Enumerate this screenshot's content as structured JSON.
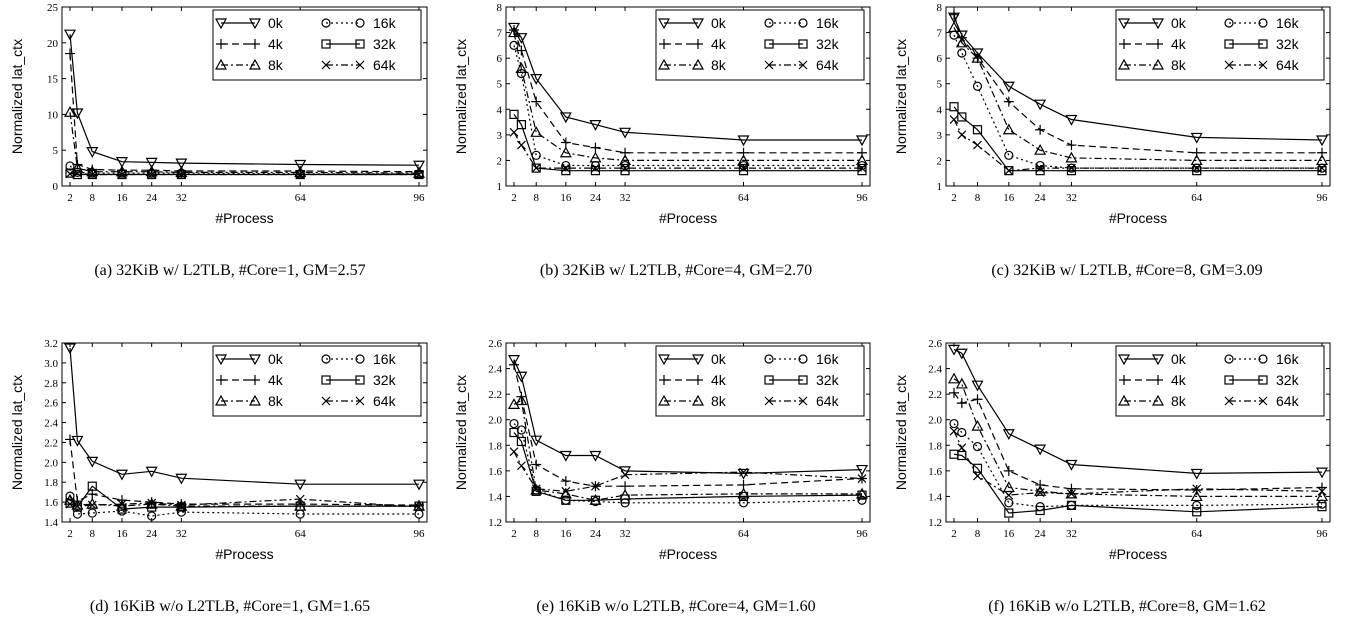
{
  "markers": {
    "0k": "tri-down",
    "4k": "plus",
    "8k": "tri-up",
    "16k": "circle",
    "32k": "square",
    "64k": "x"
  },
  "dashes": {
    "0k": "solid",
    "4k": "dash",
    "8k": "dashdot",
    "16k": "dot",
    "32k": "solid",
    "64k": "dashdot"
  },
  "chart_data": [
    {
      "type": "line",
      "caption": "(a) 32KiB w/ L2TLB, #Core=1, GM=2.57",
      "xlabel": "#Process",
      "ylabel": "Normalized lat_ctx",
      "x": [
        2,
        4,
        8,
        16,
        24,
        32,
        64,
        96
      ],
      "xticks": [
        2,
        8,
        16,
        24,
        32,
        64,
        96
      ],
      "ylim": [
        0,
        25
      ],
      "yticks": [
        0,
        5,
        10,
        15,
        20,
        25
      ],
      "legend_position": "top-right",
      "series": [
        {
          "name": "0k",
          "values": [
            21.2,
            10.2,
            4.8,
            3.4,
            3.3,
            3.2,
            3.0,
            2.9
          ]
        },
        {
          "name": "4k",
          "values": [
            18.5,
            3.0,
            2.3,
            2.2,
            2.2,
            2.1,
            2.1,
            2.0
          ]
        },
        {
          "name": "8k",
          "values": [
            10.3,
            2.5,
            2.0,
            2.0,
            2.0,
            1.9,
            1.9,
            1.8
          ]
        },
        {
          "name": "16k",
          "values": [
            2.8,
            1.9,
            1.8,
            1.8,
            1.8,
            1.8,
            1.7,
            1.7
          ]
        },
        {
          "name": "32k",
          "values": [
            1.8,
            1.6,
            1.6,
            1.6,
            1.6,
            1.6,
            1.6,
            1.6
          ]
        },
        {
          "name": "64k",
          "values": [
            1.7,
            1.8,
            1.6,
            1.6,
            1.6,
            1.6,
            1.6,
            1.6
          ]
        }
      ]
    },
    {
      "type": "line",
      "caption": "(b) 32KiB w/ L2TLB, #Core=4, GM=2.70",
      "xlabel": "#Process",
      "ylabel": "Normalized lat_ctx",
      "x": [
        2,
        4,
        8,
        16,
        24,
        32,
        64,
        96
      ],
      "xticks": [
        2,
        8,
        16,
        24,
        32,
        64,
        96
      ],
      "ylim": [
        1,
        8
      ],
      "yticks": [
        1,
        2,
        3,
        4,
        5,
        6,
        7,
        8
      ],
      "legend_position": "top-right",
      "series": [
        {
          "name": "0k",
          "values": [
            7.2,
            6.8,
            5.2,
            3.7,
            3.4,
            3.1,
            2.8,
            2.8
          ]
        },
        {
          "name": "4k",
          "values": [
            7.1,
            6.3,
            4.3,
            2.7,
            2.5,
            2.3,
            2.3,
            2.3
          ]
        },
        {
          "name": "8k",
          "values": [
            7.0,
            5.6,
            3.1,
            2.3,
            2.1,
            2.0,
            2.0,
            2.0
          ]
        },
        {
          "name": "16k",
          "values": [
            6.5,
            5.4,
            2.2,
            1.8,
            1.8,
            1.8,
            1.8,
            1.8
          ]
        },
        {
          "name": "32k",
          "values": [
            3.8,
            3.4,
            1.7,
            1.6,
            1.6,
            1.6,
            1.6,
            1.6
          ]
        },
        {
          "name": "64k",
          "values": [
            3.1,
            2.6,
            1.7,
            1.7,
            1.7,
            1.7,
            1.7,
            1.7
          ]
        }
      ]
    },
    {
      "type": "line",
      "caption": "(c) 32KiB w/ L2TLB, #Core=8, GM=3.09",
      "xlabel": "#Process",
      "ylabel": "Normalized lat_ctx",
      "x": [
        2,
        4,
        8,
        16,
        24,
        32,
        64,
        96
      ],
      "xticks": [
        2,
        8,
        16,
        24,
        32,
        64,
        96
      ],
      "ylim": [
        1,
        8
      ],
      "yticks": [
        1,
        2,
        3,
        4,
        5,
        6,
        7,
        8
      ],
      "legend_position": "top-right",
      "series": [
        {
          "name": "0k",
          "values": [
            7.6,
            6.9,
            6.2,
            4.9,
            4.2,
            3.6,
            2.9,
            2.8
          ]
        },
        {
          "name": "4k",
          "values": [
            7.7,
            6.8,
            6.0,
            4.3,
            3.2,
            2.6,
            2.3,
            2.3
          ]
        },
        {
          "name": "8k",
          "values": [
            7.2,
            6.6,
            6.0,
            3.2,
            2.4,
            2.1,
            2.0,
            2.0
          ]
        },
        {
          "name": "16k",
          "values": [
            6.9,
            6.2,
            4.9,
            2.2,
            1.8,
            1.7,
            1.7,
            1.7
          ]
        },
        {
          "name": "32k",
          "values": [
            4.1,
            3.7,
            3.2,
            1.6,
            1.6,
            1.6,
            1.6,
            1.6
          ]
        },
        {
          "name": "64k",
          "values": [
            3.6,
            3.0,
            2.6,
            1.6,
            1.7,
            1.7,
            1.7,
            1.7
          ]
        }
      ]
    },
    {
      "type": "line",
      "caption": "(d) 16KiB w/o L2TLB, #Core=1, GM=1.65",
      "xlabel": "#Process",
      "ylabel": "Normalized lat_ctx",
      "x": [
        2,
        4,
        8,
        16,
        24,
        32,
        64,
        96
      ],
      "xticks": [
        2,
        8,
        16,
        24,
        32,
        64,
        96
      ],
      "ylim": [
        1.4,
        3.2
      ],
      "yticks": [
        1.4,
        1.6,
        1.8,
        2.0,
        2.2,
        2.4,
        2.6,
        2.8,
        3.0,
        3.2
      ],
      "legend_position": "top-right",
      "series": [
        {
          "name": "0k",
          "values": [
            3.15,
            2.22,
            2.01,
            1.88,
            1.91,
            1.84,
            1.78,
            1.78
          ]
        },
        {
          "name": "4k",
          "values": [
            2.23,
            1.61,
            1.68,
            1.62,
            1.6,
            1.58,
            1.58,
            1.57
          ]
        },
        {
          "name": "8k",
          "values": [
            1.62,
            1.57,
            1.58,
            1.56,
            1.58,
            1.56,
            1.56,
            1.56
          ]
        },
        {
          "name": "16k",
          "values": [
            1.66,
            1.48,
            1.49,
            1.51,
            1.46,
            1.5,
            1.48,
            1.48
          ]
        },
        {
          "name": "32k",
          "values": [
            1.59,
            1.55,
            1.76,
            1.53,
            1.55,
            1.55,
            1.56,
            1.56
          ]
        },
        {
          "name": "64k",
          "values": [
            1.58,
            1.56,
            1.57,
            1.58,
            1.59,
            1.57,
            1.63,
            1.55
          ]
        }
      ]
    },
    {
      "type": "line",
      "caption": "(e) 16KiB w/o L2TLB, #Core=4, GM=1.60",
      "xlabel": "#Process",
      "ylabel": "Normalized lat_ctx",
      "x": [
        2,
        4,
        8,
        16,
        24,
        32,
        64,
        96
      ],
      "xticks": [
        2,
        8,
        16,
        24,
        32,
        64,
        96
      ],
      "ylim": [
        1.2,
        2.6
      ],
      "yticks": [
        1.2,
        1.4,
        1.6,
        1.8,
        2.0,
        2.2,
        2.4,
        2.6
      ],
      "legend_position": "top-right",
      "series": [
        {
          "name": "0k",
          "values": [
            2.47,
            2.34,
            1.84,
            1.72,
            1.72,
            1.6,
            1.58,
            1.61
          ]
        },
        {
          "name": "4k",
          "values": [
            2.43,
            2.18,
            1.65,
            1.52,
            1.48,
            1.48,
            1.49,
            1.54
          ]
        },
        {
          "name": "8k",
          "values": [
            2.12,
            2.15,
            1.45,
            1.42,
            1.37,
            1.41,
            1.42,
            1.42
          ]
        },
        {
          "name": "16k",
          "values": [
            1.97,
            1.92,
            1.45,
            1.37,
            1.36,
            1.35,
            1.35,
            1.37
          ]
        },
        {
          "name": "32k",
          "values": [
            1.9,
            1.83,
            1.44,
            1.37,
            1.37,
            1.38,
            1.4,
            1.41
          ]
        },
        {
          "name": "64k",
          "values": [
            1.75,
            1.64,
            1.46,
            1.44,
            1.48,
            1.57,
            1.59,
            1.54
          ]
        }
      ]
    },
    {
      "type": "line",
      "caption": "(f) 16KiB w/o L2TLB, #Core=8, GM=1.62",
      "xlabel": "#Process",
      "ylabel": "Normalized lat_ctx",
      "x": [
        2,
        4,
        8,
        16,
        24,
        32,
        64,
        96
      ],
      "xticks": [
        2,
        8,
        16,
        24,
        32,
        64,
        96
      ],
      "ylim": [
        1.2,
        2.6
      ],
      "yticks": [
        1.2,
        1.4,
        1.6,
        1.8,
        2.0,
        2.2,
        2.4,
        2.6
      ],
      "legend_position": "top-right",
      "series": [
        {
          "name": "0k",
          "values": [
            2.55,
            2.52,
            2.27,
            1.89,
            1.77,
            1.65,
            1.58,
            1.59
          ]
        },
        {
          "name": "4k",
          "values": [
            2.21,
            2.13,
            2.16,
            1.6,
            1.49,
            1.46,
            1.45,
            1.47
          ]
        },
        {
          "name": "8k",
          "values": [
            2.32,
            2.28,
            1.95,
            1.47,
            1.44,
            1.42,
            1.4,
            1.4
          ]
        },
        {
          "name": "16k",
          "values": [
            1.97,
            1.9,
            1.79,
            1.35,
            1.32,
            1.33,
            1.33,
            1.34
          ]
        },
        {
          "name": "32k",
          "values": [
            1.73,
            1.72,
            1.62,
            1.27,
            1.29,
            1.33,
            1.28,
            1.32
          ]
        },
        {
          "name": "64k",
          "values": [
            1.91,
            1.78,
            1.56,
            1.41,
            1.43,
            1.42,
            1.46,
            1.44
          ]
        }
      ]
    }
  ]
}
